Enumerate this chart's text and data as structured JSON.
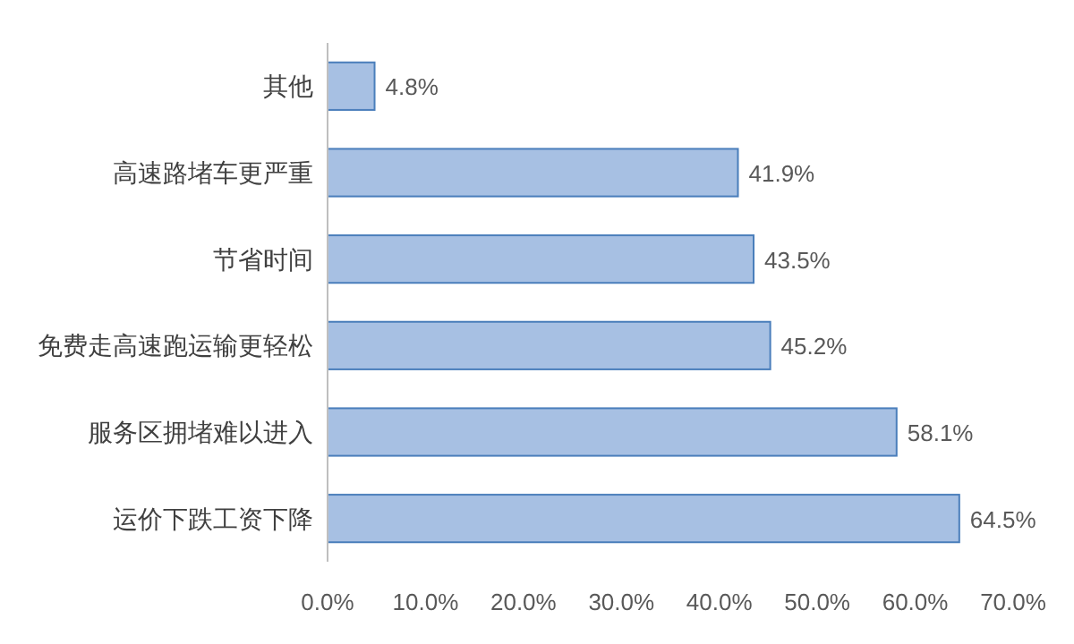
{
  "chart_data": {
    "type": "bar",
    "orientation": "horizontal",
    "categories": [
      "其他",
      "高速路堵车更严重",
      "节省时间",
      "免费走高速跑运输更轻松",
      "服务区拥堵难以进入",
      "运价下跌工资下降"
    ],
    "values": [
      4.8,
      41.9,
      43.5,
      45.2,
      58.1,
      64.5
    ],
    "value_labels": [
      "4.8%",
      "41.9%",
      "43.5%",
      "45.2%",
      "58.1%",
      "64.5%"
    ],
    "color": "#a7c0e3",
    "xlim": [
      0,
      70
    ],
    "xticks": [
      {
        "value": 0,
        "label": "0.0%"
      },
      {
        "value": 10,
        "label": "10.0%"
      },
      {
        "value": 20,
        "label": "20.0%"
      },
      {
        "value": 30,
        "label": "30.0%"
      },
      {
        "value": 40,
        "label": "40.0%"
      },
      {
        "value": 50,
        "label": "50.0%"
      },
      {
        "value": 60,
        "label": "60.0%"
      },
      {
        "value": 70,
        "label": "70.0%"
      }
    ],
    "grid": false
  }
}
